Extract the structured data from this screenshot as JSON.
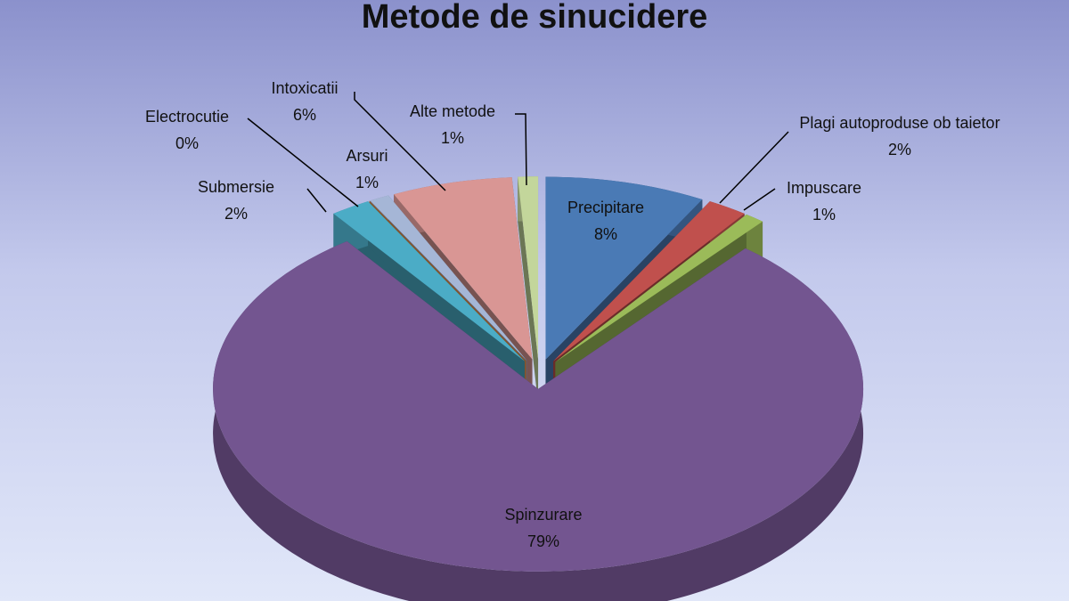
{
  "chart_data": {
    "type": "pie",
    "title": "Metode de sinucidere",
    "categories": [
      "Precipitare",
      "Plagi autoproduse ob taietor",
      "Impuscare",
      "Spinzurare",
      "Submersie",
      "Electrocutie",
      "Arsuri",
      "Intoxicatii",
      "Alte metode"
    ],
    "values": [
      8,
      2,
      1,
      79,
      2,
      0,
      1,
      6,
      1
    ],
    "value_labels": [
      "8%",
      "2%",
      "1%",
      "79%",
      "2%",
      "0%",
      "1%",
      "6%",
      "1%"
    ],
    "colors": [
      "#4a7ab5",
      "#c0504d",
      "#9bbb59",
      "#735590",
      "#4bacc6",
      "#f79646",
      "#a5b6d6",
      "#d99694",
      "#c3d69b"
    ]
  }
}
